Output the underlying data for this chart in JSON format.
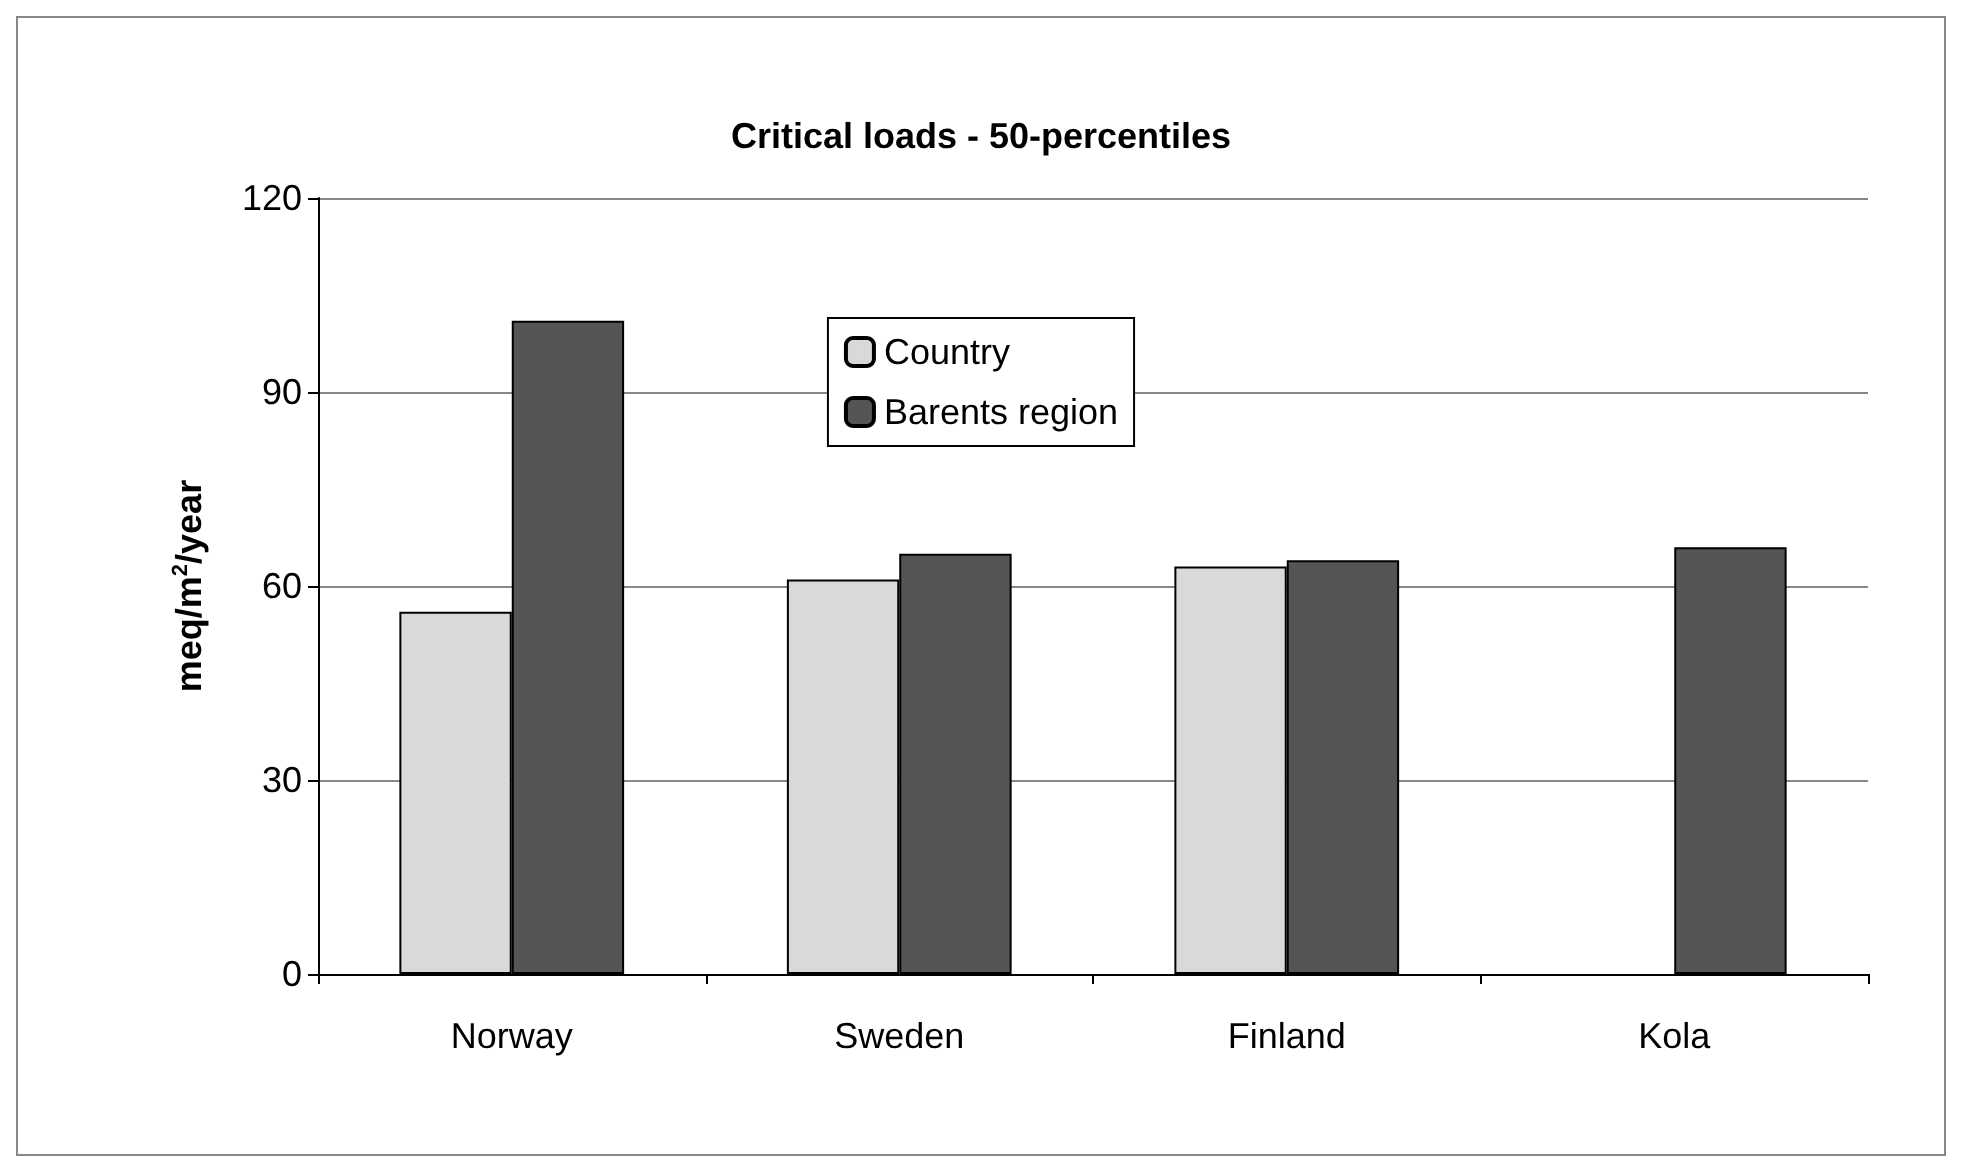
{
  "chart_data": {
    "type": "bar",
    "title": "Critical loads - 50-percentiles",
    "ylabel": "meq/m$^{2}$/year",
    "categories": [
      "Norway",
      "Sweden",
      "Finland",
      "Kola"
    ],
    "series": [
      {
        "name": "Country",
        "color": "#d9d9d9",
        "values": [
          56,
          61,
          63,
          null
        ]
      },
      {
        "name": "Barents region",
        "color": "#555555",
        "values": [
          101,
          65,
          64,
          66
        ]
      }
    ],
    "ylim": [
      0,
      120
    ],
    "yticks": [
      0,
      30,
      60,
      90,
      120
    ],
    "grid": "y",
    "legend": "top"
  }
}
